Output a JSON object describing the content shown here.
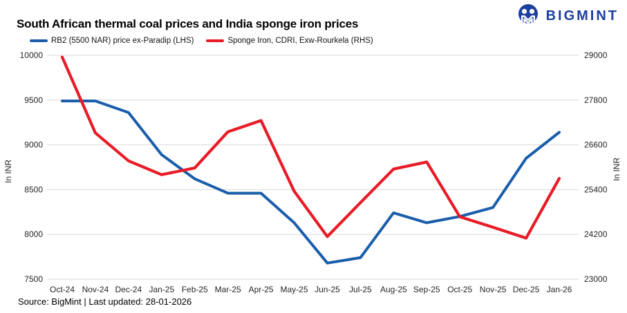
{
  "header": {
    "title": "South African thermal coal prices and India sponge iron prices",
    "logo_text": "BIGMINT",
    "logo_color": "#1d3f9e"
  },
  "legend": [
    {
      "label": "RB2 (5500 NAR) price ex-Paradip (LHS)",
      "color": "#1a5dab"
    },
    {
      "label": "Sponge Iron, CDRI, Exw-Rourkela (RHS)",
      "color": "#e81b26"
    }
  ],
  "footer": {
    "source": "Source: BigMint | Last updated: 28-01-2026"
  },
  "chart_data": {
    "type": "line",
    "title": "South African thermal coal prices and India sponge iron prices",
    "grid": "horizontal",
    "legend_position": "top-left",
    "gridline_color": "#d9d9d9",
    "tick_color": "#262626",
    "categories": [
      "Oct-24",
      "Nov-24",
      "Dec-24",
      "Jan-25",
      "Feb-25",
      "Mar-25",
      "Apr-25",
      "May-25",
      "Jun-25",
      "Jul-25",
      "Aug-25",
      "Sep-25",
      "Oct-25",
      "Nov-25",
      "Dec-25",
      "Jan-26"
    ],
    "series": [
      {
        "name": "RB2 (5500 NAR) price ex-Paradip (LHS)",
        "axis": "left",
        "color": "#1a5dab",
        "values": [
          9490,
          9490,
          9360,
          8890,
          8620,
          8460,
          8460,
          8130,
          7680,
          7740,
          8240,
          8130,
          8200,
          8300,
          8850,
          9140
        ]
      },
      {
        "name": "Sponge Iron, CDRI, Exw-Rourkela (RHS)",
        "axis": "right",
        "color": "#e81b26",
        "values": [
          28950,
          26920,
          26170,
          25800,
          25980,
          26950,
          27250,
          25360,
          24140,
          25050,
          25950,
          26140,
          24670,
          24390,
          24100,
          25700
        ]
      }
    ],
    "left_axis": {
      "label": "In INR",
      "min": 7500,
      "max": 10000,
      "ticks": [
        7500,
        8000,
        8500,
        9000,
        9500,
        10000
      ]
    },
    "right_axis": {
      "label": "In INR",
      "min": 23000,
      "max": 29000,
      "ticks": [
        23000,
        24200,
        25400,
        26600,
        27800,
        29000
      ]
    }
  }
}
